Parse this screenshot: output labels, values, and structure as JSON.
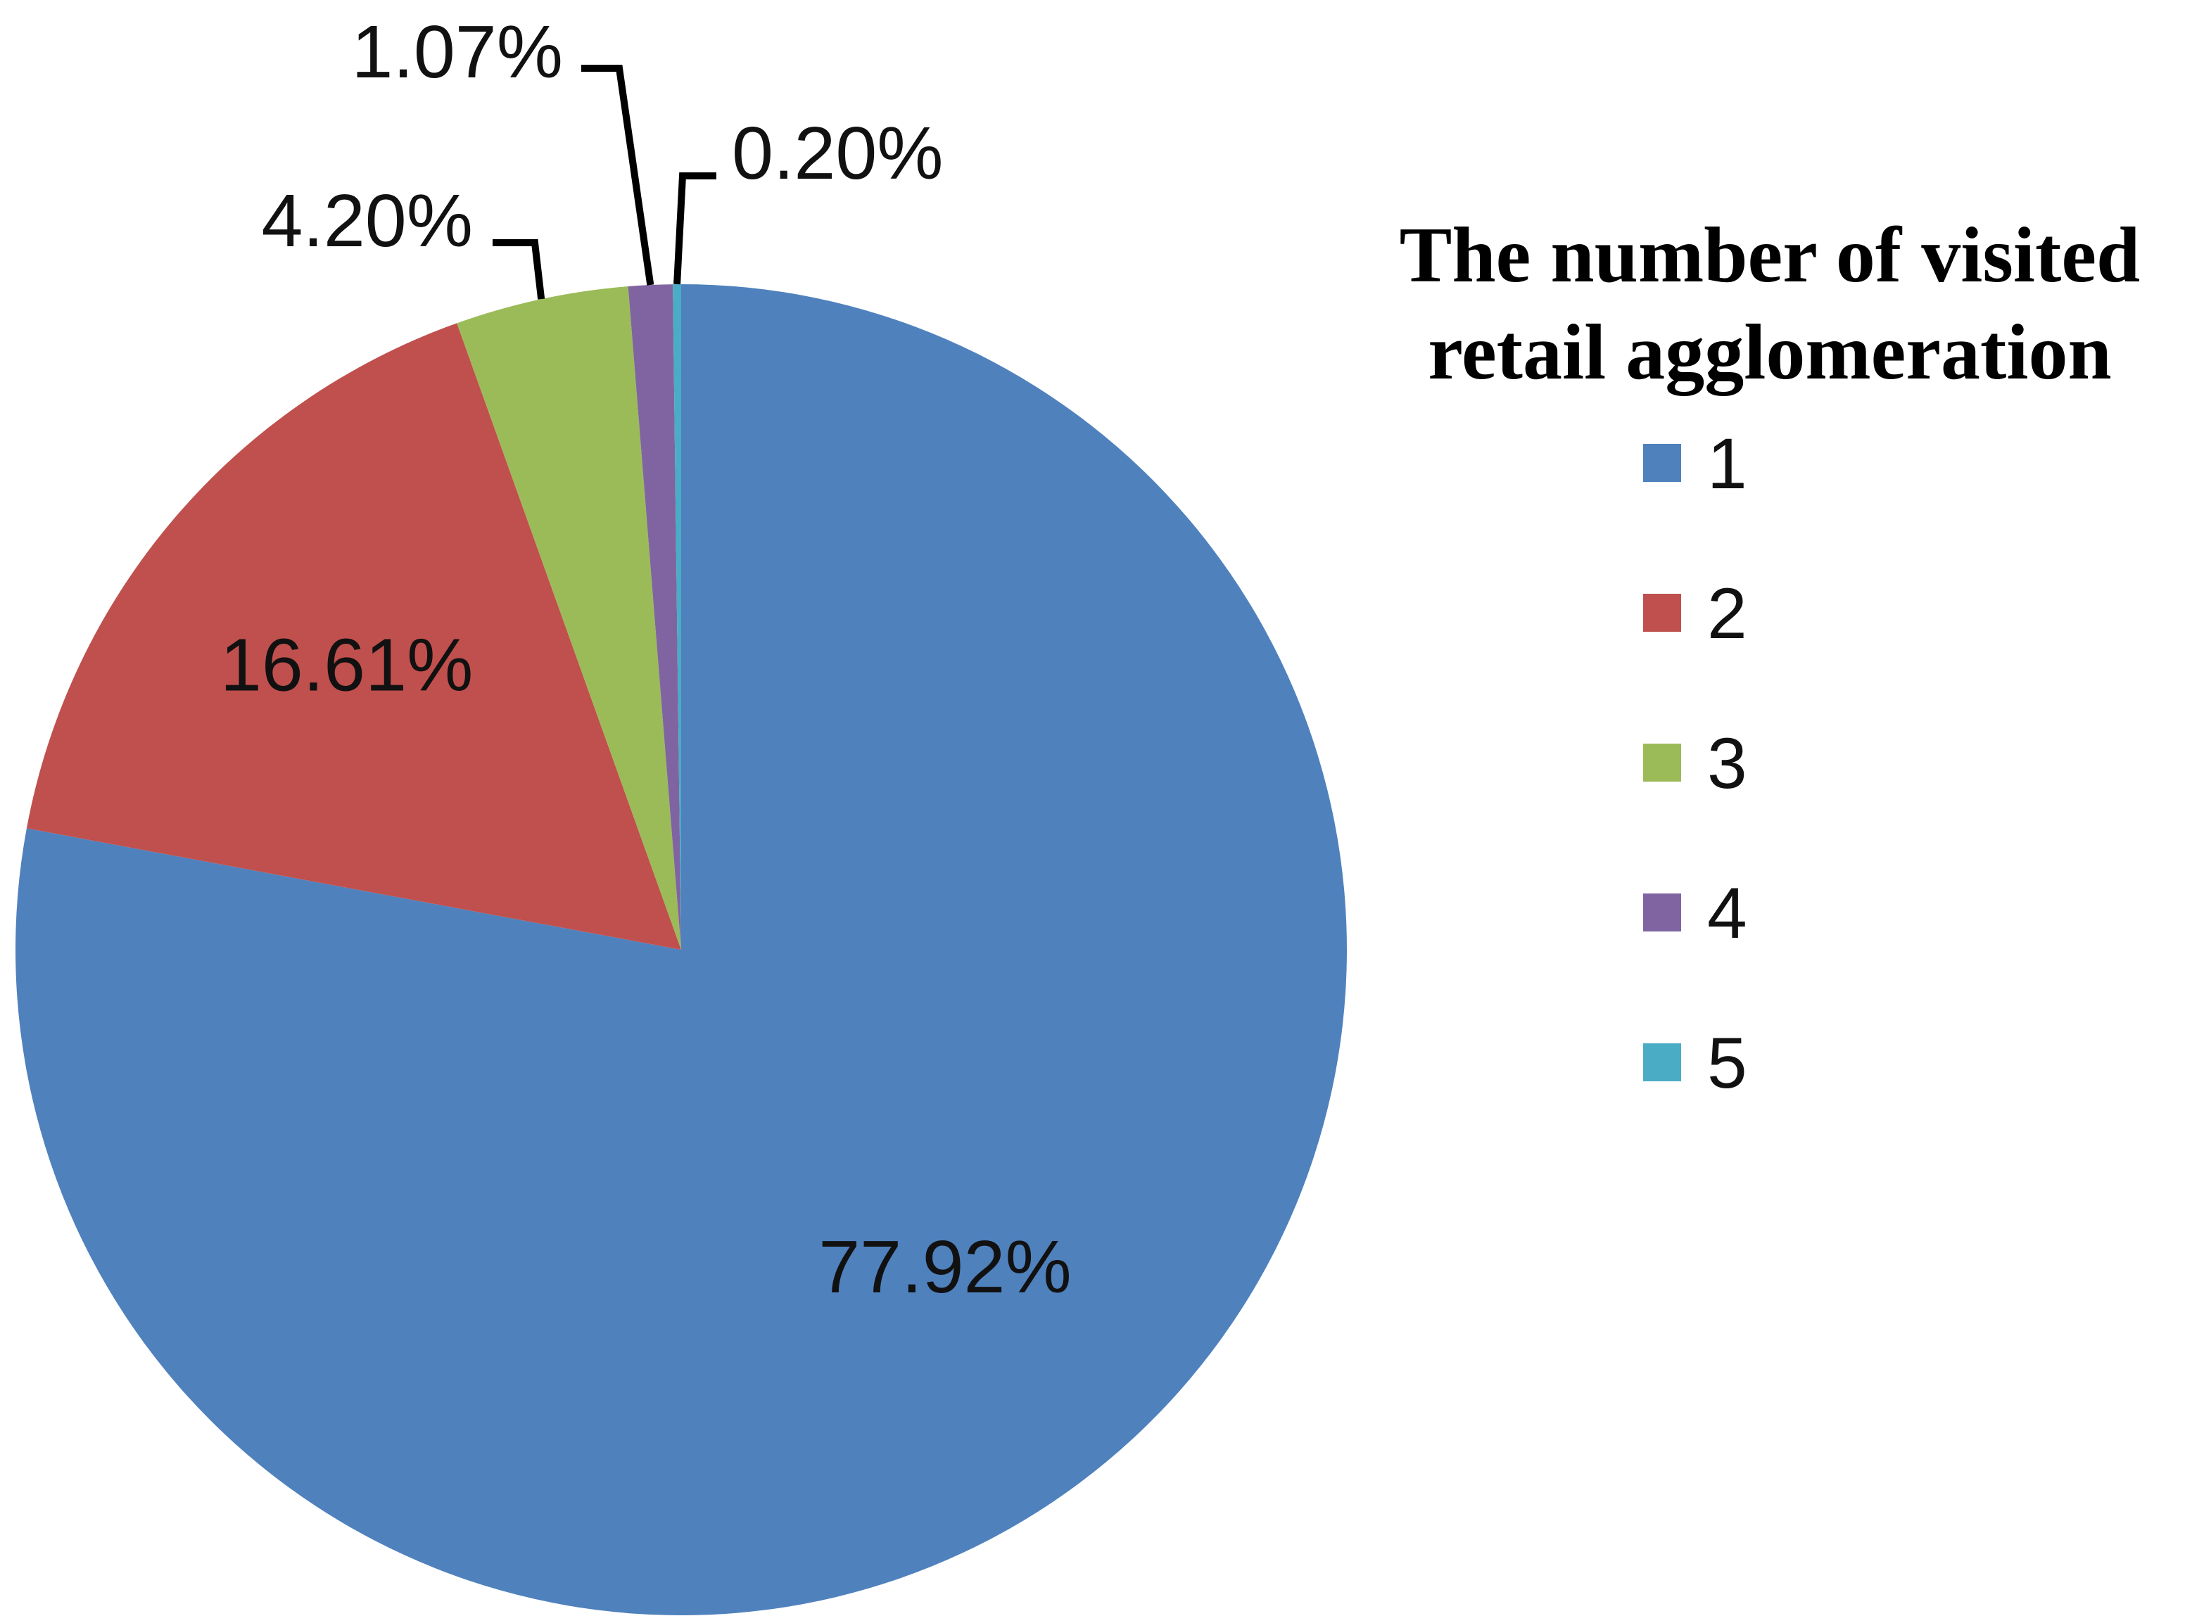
{
  "chart_data": {
    "type": "pie",
    "categories": [
      "1",
      "2",
      "3",
      "4",
      "5"
    ],
    "values": [
      77.92,
      16.61,
      4.2,
      1.07,
      0.2
    ],
    "value_labels": [
      "77.92%",
      "16.61%",
      "4.20%",
      "1.07%",
      "0.20%"
    ],
    "colors": [
      "#4F81BD",
      "#C0504D",
      "#9BBB59",
      "#8064A2",
      "#4BACC6"
    ],
    "start_angle": "12 o'clock",
    "direction": "clockwise",
    "legend": {
      "title_lines": [
        "The number of visited",
        "retail agglomeration"
      ],
      "placement": "right"
    }
  }
}
